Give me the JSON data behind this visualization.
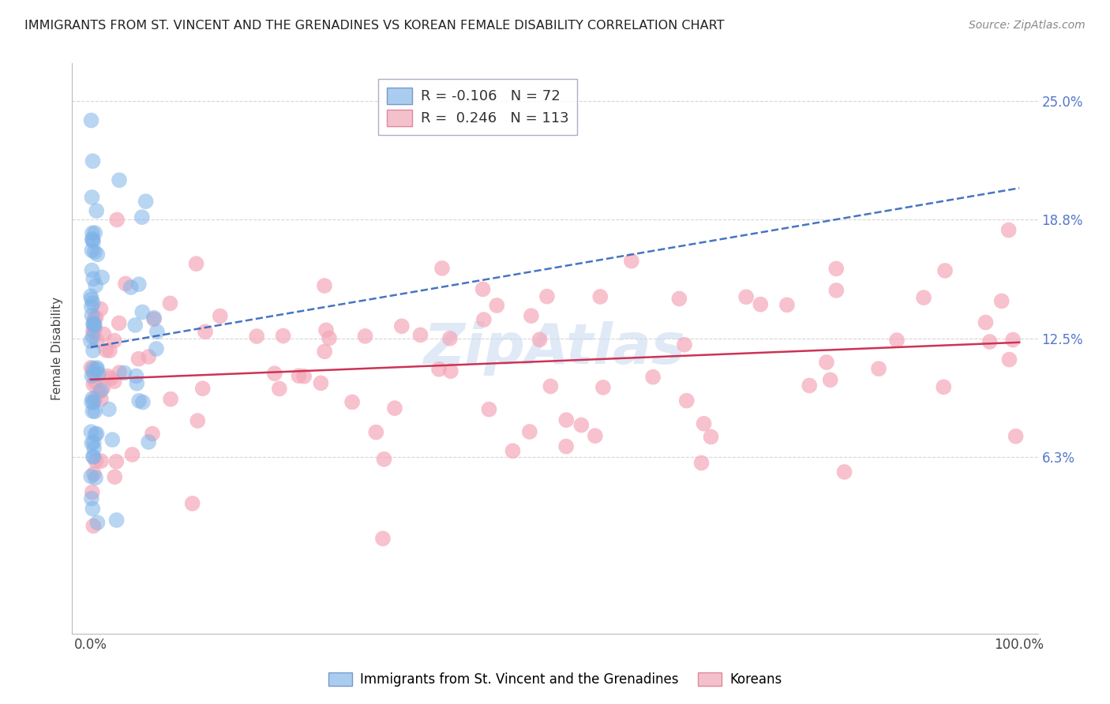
{
  "title": "IMMIGRANTS FROM ST. VINCENT AND THE GRENADINES VS KOREAN FEMALE DISABILITY CORRELATION CHART",
  "source": "Source: ZipAtlas.com",
  "ylabel": "Female Disability",
  "watermark": "ZipAtlas",
  "blue_R": -0.106,
  "blue_N": 72,
  "pink_R": 0.246,
  "pink_N": 113,
  "xlim": [
    0,
    100
  ],
  "ylim": [
    0,
    25
  ],
  "yticks": [
    6.3,
    12.5,
    18.8,
    25.0
  ],
  "ytick_labels": [
    "6.3%",
    "12.5%",
    "18.8%",
    "25.0%"
  ],
  "xtick_labels": [
    "0.0%",
    "100.0%"
  ],
  "bg_color": "#ffffff",
  "blue_marker_color": "#7fb3e8",
  "pink_marker_color": "#f4a7b9",
  "blue_line_color": "#3366bb",
  "pink_line_color": "#cc3355",
  "legend_border_color": "#aaaacc",
  "grid_color": "#cccccc",
  "right_tick_color": "#5577cc",
  "seed": 123
}
